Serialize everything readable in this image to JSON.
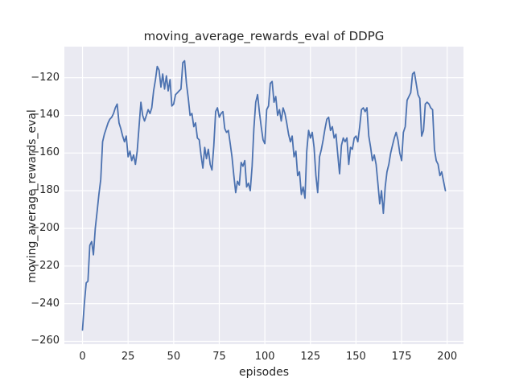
{
  "chart_data": {
    "type": "line",
    "title": "moving_average_rewards_eval of DDPG",
    "xlabel": "episodes",
    "ylabel": "moving_average_rewards_eval",
    "x_ticks": [
      0,
      25,
      50,
      75,
      100,
      125,
      150,
      175,
      200
    ],
    "x_tick_labels": [
      "0",
      "25",
      "50",
      "75",
      "100",
      "125",
      "150",
      "175",
      "200"
    ],
    "y_ticks": [
      -120,
      -140,
      -160,
      -180,
      -200,
      -220,
      -240,
      -260
    ],
    "y_tick_labels": [
      "−120",
      "−140",
      "−160",
      "−180",
      "−200",
      "−220",
      "−240",
      "−260"
    ],
    "xlim": [
      -9.95,
      208.95
    ],
    "ylim": [
      -261.5,
      -103.5
    ],
    "grid": true,
    "legend": "none",
    "background_color": "#EAEAF2",
    "grid_color": "#FFFFFF",
    "line_color": "#4C72B0",
    "text_color": "#262626",
    "series": [
      {
        "name": "moving_average_rewards_eval",
        "x_start": 0,
        "x_step": 1,
        "values": [
          -254,
          -240,
          -229,
          -228,
          -209,
          -207,
          -214,
          -200,
          -191,
          -182,
          -174,
          -154,
          -150,
          -147,
          -144,
          -142,
          -141,
          -139,
          -136,
          -134,
          -144,
          -147,
          -151,
          -154,
          -151,
          -162,
          -159,
          -164,
          -161,
          -166,
          -159,
          -146,
          -133,
          -140,
          -143,
          -140,
          -137,
          -139,
          -136,
          -127,
          -121,
          -114,
          -116,
          -125,
          -118,
          -126,
          -119,
          -127,
          -121,
          -135,
          -134,
          -129,
          -128,
          -127,
          -126,
          -112,
          -111,
          -123,
          -131,
          -140,
          -139,
          -146,
          -144,
          -152,
          -153,
          -161,
          -168,
          -157,
          -163,
          -158,
          -166,
          -169,
          -156,
          -138,
          -136,
          -141,
          -139,
          -138,
          -147,
          -149,
          -148,
          -155,
          -162,
          -172,
          -181,
          -175,
          -177,
          -165,
          -167,
          -164,
          -178,
          -176,
          -180,
          -167,
          -147,
          -133,
          -129,
          -138,
          -146,
          -153,
          -155,
          -137,
          -135,
          -123,
          -122,
          -133,
          -130,
          -140,
          -137,
          -143,
          -136,
          -139,
          -144,
          -150,
          -154,
          -151,
          -162,
          -159,
          -172,
          -170,
          -182,
          -178,
          -184,
          -159,
          -148,
          -152,
          -149,
          -157,
          -172,
          -181,
          -162,
          -158,
          -153,
          -147,
          -142,
          -141,
          -148,
          -146,
          -152,
          -150,
          -161,
          -171,
          -156,
          -152,
          -154,
          -152,
          -166,
          -157,
          -158,
          -152,
          -151,
          -154,
          -146,
          -137,
          -136,
          -138,
          -136,
          -151,
          -157,
          -164,
          -161,
          -166,
          -176,
          -187,
          -180,
          -192,
          -178,
          -170,
          -166,
          -160,
          -156,
          -152,
          -149,
          -153,
          -160,
          -164,
          -149,
          -146,
          -132,
          -130,
          -128,
          -118,
          -117,
          -123,
          -129,
          -131,
          -151,
          -148,
          -134,
          -133,
          -134,
          -136,
          -137,
          -158,
          -164,
          -166,
          -172,
          -170,
          -175,
          -180
        ]
      }
    ]
  }
}
